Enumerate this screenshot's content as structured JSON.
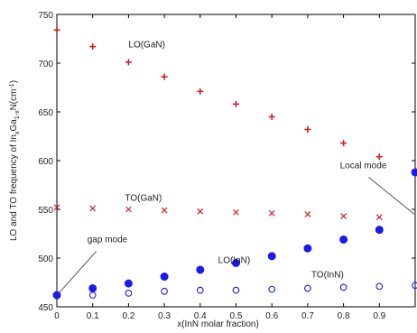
{
  "chart_data": {
    "type": "scatter",
    "title": "",
    "xlabel": "x(InN molar fraction)",
    "ylabel": "LO and TO frequency of In_xGa_1-xN(cm^-1)",
    "ylabel_parts": {
      "main": "LO and TO frequency of In",
      "sub1": "x",
      "mid": "Ga",
      "sub2": "1-x",
      "tail": "N(cm",
      "sup": "-1",
      "close": ")"
    },
    "xlim": [
      0,
      1
    ],
    "ylim": [
      450,
      750
    ],
    "grid": false,
    "x_ticks": [
      "0",
      "0.1",
      "0.2",
      "0.3",
      "0.4",
      "0.5",
      "0.6",
      "0.7",
      "0.8",
      "0.9"
    ],
    "x_tick_values": [
      0,
      0.1,
      0.2,
      0.3,
      0.4,
      0.5,
      0.6,
      0.7,
      0.8,
      0.9
    ],
    "y_ticks": [
      "450",
      "500",
      "550",
      "600",
      "650",
      "700",
      "750"
    ],
    "y_tick_values": [
      450,
      500,
      550,
      600,
      650,
      700,
      750
    ],
    "colors": {
      "red": "#cc2222",
      "blue": "#1a1aee",
      "axis": "#000000"
    },
    "series": [
      {
        "name": "LO(GaN)",
        "marker": "plus",
        "color": "#cc2222",
        "x": [
          0,
          0.1,
          0.2,
          0.3,
          0.4,
          0.5,
          0.6,
          0.7,
          0.8,
          0.9,
          1.0
        ],
        "y": [
          734,
          717,
          701,
          686,
          671,
          658,
          645,
          632,
          618,
          604,
          590
        ]
      },
      {
        "name": "TO(GaN)",
        "marker": "x",
        "color": "#cc2222",
        "x": [
          0,
          0.1,
          0.2,
          0.3,
          0.4,
          0.5,
          0.6,
          0.7,
          0.8,
          0.9
        ],
        "y": [
          552,
          551,
          550,
          549,
          548,
          547,
          546,
          545,
          543,
          542
        ]
      },
      {
        "name": "LO(InN)",
        "marker": "filled-circle",
        "color": "#1a1aee",
        "x": [
          0,
          0.1,
          0.2,
          0.3,
          0.4,
          0.5,
          0.6,
          0.7,
          0.8,
          0.9,
          1.0
        ],
        "y": [
          462,
          469,
          474,
          481,
          488,
          495,
          502,
          510,
          519,
          529,
          588
        ]
      },
      {
        "name": "TO(InN)",
        "marker": "open-circle",
        "color": "#1a1aee",
        "x": [
          0.1,
          0.2,
          0.3,
          0.4,
          0.5,
          0.6,
          0.7,
          0.8,
          0.9,
          1.0
        ],
        "y": [
          462,
          464,
          466,
          467,
          467,
          468,
          469,
          470,
          471,
          472
        ]
      }
    ],
    "annotations": [
      {
        "text": "gap mode",
        "arrow_to": {
          "x": 0.0,
          "y": 462
        }
      },
      {
        "text": "Local mode",
        "arrow_to": {
          "x": 1.0,
          "y": 545
        }
      }
    ]
  }
}
